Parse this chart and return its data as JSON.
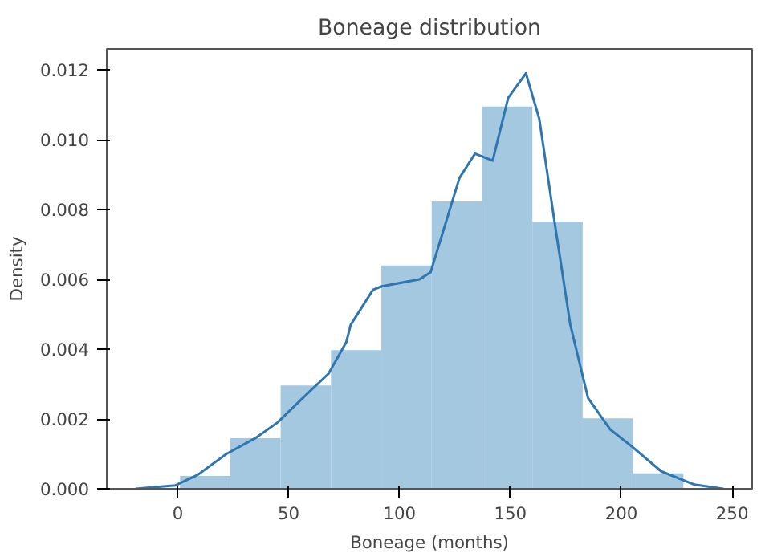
{
  "chart_data": {
    "type": "histogram",
    "title": "Boneage distribution",
    "xlabel": "Boneage (months)",
    "ylabel": "Density",
    "bins": [
      1,
      23.7,
      46.4,
      69.1,
      91.8,
      114.5,
      137.2,
      159.9,
      182.6,
      205.3,
      228
    ],
    "values": [
      0.00037,
      0.00145,
      0.00296,
      0.00397,
      0.0064,
      0.00823,
      0.01095,
      0.00765,
      0.00202,
      0.00044
    ],
    "color": "#a5c8e1",
    "series": [
      {
        "type": "line",
        "color": "#2f76b0",
        "x": [
          -19,
          -1,
          9,
          22,
          35,
          45,
          58,
          68,
          76,
          78,
          88,
          92,
          109,
          114,
          127,
          134,
          142,
          149,
          157,
          163,
          170,
          177,
          185,
          195,
          205,
          218,
          233,
          246
        ],
        "values": [
          0,
          0.0001,
          0.0004,
          0.001,
          0.00145,
          0.0019,
          0.0027,
          0.0033,
          0.0042,
          0.0047,
          0.0057,
          0.0058,
          0.006,
          0.0062,
          0.0089,
          0.0096,
          0.0094,
          0.0112,
          0.0119,
          0.0106,
          0.0076,
          0.0047,
          0.0026,
          0.0017,
          0.0012,
          0.0005,
          0.00012,
          0
        ]
      }
    ],
    "xlim": [
      -32,
      259
    ],
    "ylim": [
      0,
      0.0126
    ],
    "xticks": [
      0,
      50,
      100,
      150,
      200,
      250
    ],
    "yticks": [
      {
        "value": 0,
        "label": "0.000"
      },
      {
        "value": 0.002,
        "label": "0.002"
      },
      {
        "value": 0.004,
        "label": "0.004"
      },
      {
        "value": 0.006,
        "label": "0.006"
      },
      {
        "value": 0.008,
        "label": "0.008"
      },
      {
        "value": 0.01,
        "label": "0.010"
      },
      {
        "value": 0.012,
        "label": "0.012"
      }
    ],
    "grid": false
  }
}
